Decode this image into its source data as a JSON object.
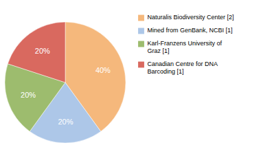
{
  "chart_data": {
    "type": "pie",
    "categories": [
      "Naturalis Biodiversity Center [2]",
      "Mined from GenBank, NCBI [1]",
      "Karl-Franzens University of\nGraz [1]",
      "Canadian Centre for DNA\nBarcoding [1]"
    ],
    "values": [
      40,
      20,
      20,
      20
    ],
    "value_labels": [
      "40%",
      "20%",
      "20%",
      "20%"
    ],
    "colors": [
      "#f5b87c",
      "#adc7e8",
      "#9dbc6e",
      "#d9695f"
    ],
    "data_labels": true,
    "legend": "right"
  }
}
